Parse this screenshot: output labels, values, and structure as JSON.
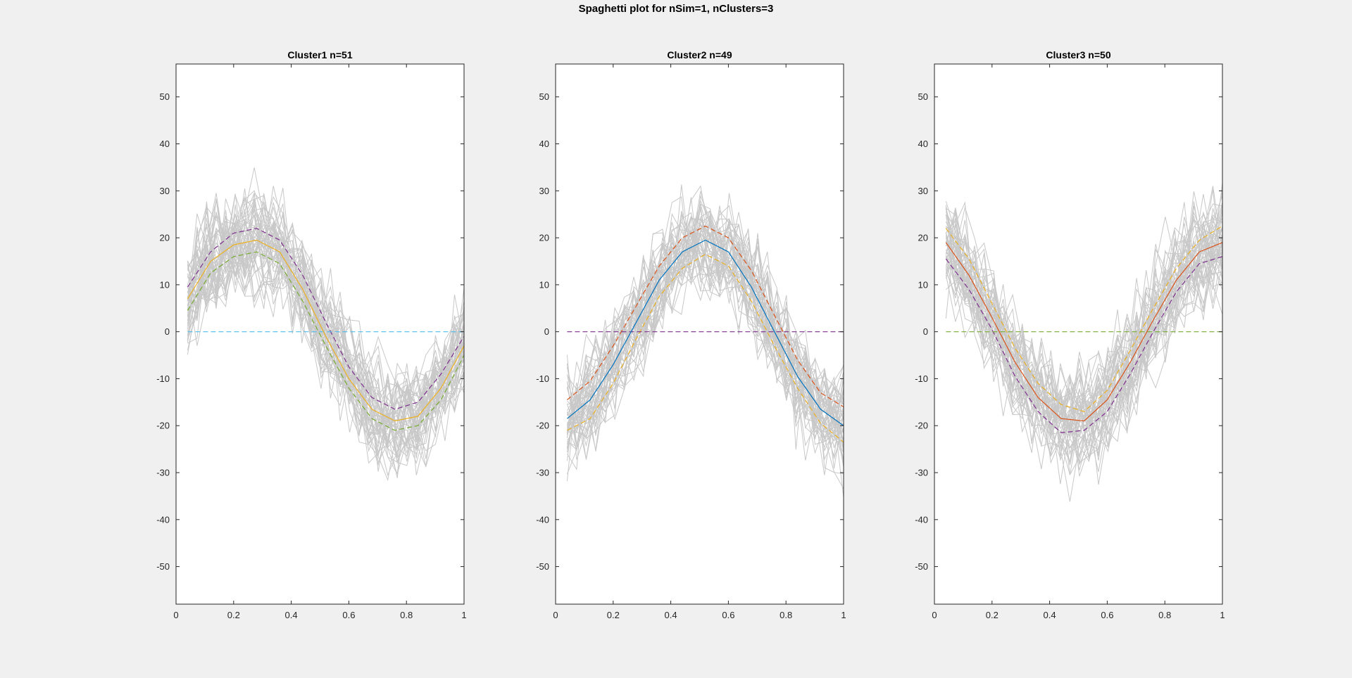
{
  "figure": {
    "title": "Spaghetti plot for nSim=1, nClusters=3",
    "background": "#f0f0f0",
    "trajectory_color": "#c8c8c8"
  },
  "chart_data": [
    {
      "type": "line",
      "title": "Cluster1 n=51",
      "n_trajectories": 51,
      "xlim": [
        0,
        1
      ],
      "ylim": [
        -58,
        57
      ],
      "xticks": [
        "0",
        "0.2",
        "0.4",
        "0.6",
        "0.8",
        "1"
      ],
      "yticks": [
        "-50",
        "-40",
        "-30",
        "-20",
        "-10",
        "0",
        "10",
        "20",
        "30",
        "40",
        "50"
      ],
      "x": [
        0.04,
        0.12,
        0.2,
        0.28,
        0.36,
        0.44,
        0.52,
        0.6,
        0.68,
        0.76,
        0.84,
        0.92,
        1.0
      ],
      "series": [
        {
          "color": "#EDB120",
          "dash": "solid",
          "values": [
            7,
            15,
            18.5,
            19.5,
            17,
            9,
            -1,
            -10,
            -16.5,
            -19,
            -18,
            -12,
            -3
          ]
        },
        {
          "color": "#7E2F8E",
          "dash": "dashed",
          "values": [
            9.5,
            17,
            21,
            22,
            19.5,
            12,
            2,
            -7.5,
            -14,
            -16.5,
            -15,
            -9,
            -1
          ]
        },
        {
          "color": "#77AC30",
          "dash": "dashed",
          "values": [
            4.5,
            12.5,
            16,
            17,
            14.5,
            6.5,
            -3,
            -12,
            -18.5,
            -21,
            -20,
            -14.5,
            -5
          ]
        },
        {
          "color": "#4DBEEE",
          "dash": "dashed",
          "values": [
            0,
            0,
            0,
            0,
            0,
            0,
            0,
            0,
            0,
            0,
            0,
            0,
            0
          ]
        }
      ]
    },
    {
      "type": "line",
      "title": "Cluster2 n=49",
      "n_trajectories": 49,
      "xlim": [
        0,
        1
      ],
      "ylim": [
        -58,
        57
      ],
      "xticks": [
        "0",
        "0.2",
        "0.4",
        "0.6",
        "0.8",
        "1"
      ],
      "yticks": [
        "-50",
        "-40",
        "-30",
        "-20",
        "-10",
        "0",
        "10",
        "20",
        "30",
        "40",
        "50"
      ],
      "x": [
        0.04,
        0.12,
        0.2,
        0.28,
        0.36,
        0.44,
        0.52,
        0.6,
        0.68,
        0.76,
        0.84,
        0.92,
        1.0
      ],
      "series": [
        {
          "color": "#0072BD",
          "dash": "solid",
          "values": [
            -18.5,
            -14.5,
            -7,
            2,
            11,
            17,
            19.5,
            17,
            9.5,
            0,
            -9.5,
            -16.5,
            -20
          ]
        },
        {
          "color": "#D95319",
          "dash": "dashed",
          "values": [
            -14.5,
            -10.5,
            -3,
            5.5,
            14,
            20,
            22.5,
            20,
            13,
            3.5,
            -6,
            -13,
            -16
          ]
        },
        {
          "color": "#EDB120",
          "dash": "dashed",
          "values": [
            -21,
            -18.5,
            -11,
            -1.5,
            7.5,
            13.5,
            16.5,
            14,
            6.5,
            -3,
            -12,
            -19.5,
            -23.5
          ]
        },
        {
          "color": "#7E2F8E",
          "dash": "dashed",
          "values": [
            0,
            0,
            0,
            0,
            0,
            0,
            0,
            0,
            0,
            0,
            0,
            0,
            0
          ]
        }
      ]
    },
    {
      "type": "line",
      "title": "Cluster3 n=50",
      "n_trajectories": 50,
      "xlim": [
        0,
        1
      ],
      "ylim": [
        -58,
        57
      ],
      "xticks": [
        "0",
        "0.2",
        "0.4",
        "0.6",
        "0.8",
        "1"
      ],
      "yticks": [
        "-50",
        "-40",
        "-30",
        "-20",
        "-10",
        "0",
        "10",
        "20",
        "30",
        "40",
        "50"
      ],
      "x": [
        0.04,
        0.12,
        0.2,
        0.28,
        0.36,
        0.44,
        0.52,
        0.6,
        0.68,
        0.76,
        0.84,
        0.92,
        1.0
      ],
      "series": [
        {
          "color": "#D95319",
          "dash": "solid",
          "values": [
            19,
            12,
            3,
            -6.5,
            -14,
            -18.5,
            -19,
            -14.5,
            -6.5,
            2.5,
            11,
            17,
            19
          ]
        },
        {
          "color": "#EDB120",
          "dash": "dashed",
          "values": [
            22,
            15.5,
            6,
            -3.5,
            -11,
            -15.5,
            -17,
            -12.5,
            -4,
            5,
            13.5,
            19.5,
            22.5
          ]
        },
        {
          "color": "#7E2F8E",
          "dash": "dashed",
          "values": [
            15.5,
            9,
            0.5,
            -9.5,
            -17,
            -21.5,
            -21,
            -17,
            -9,
            0,
            8.5,
            14.5,
            16
          ]
        },
        {
          "color": "#77AC30",
          "dash": "dashed",
          "values": [
            0,
            0,
            0,
            0,
            0,
            0,
            0,
            0,
            0,
            0,
            0,
            0,
            0
          ]
        }
      ]
    }
  ]
}
